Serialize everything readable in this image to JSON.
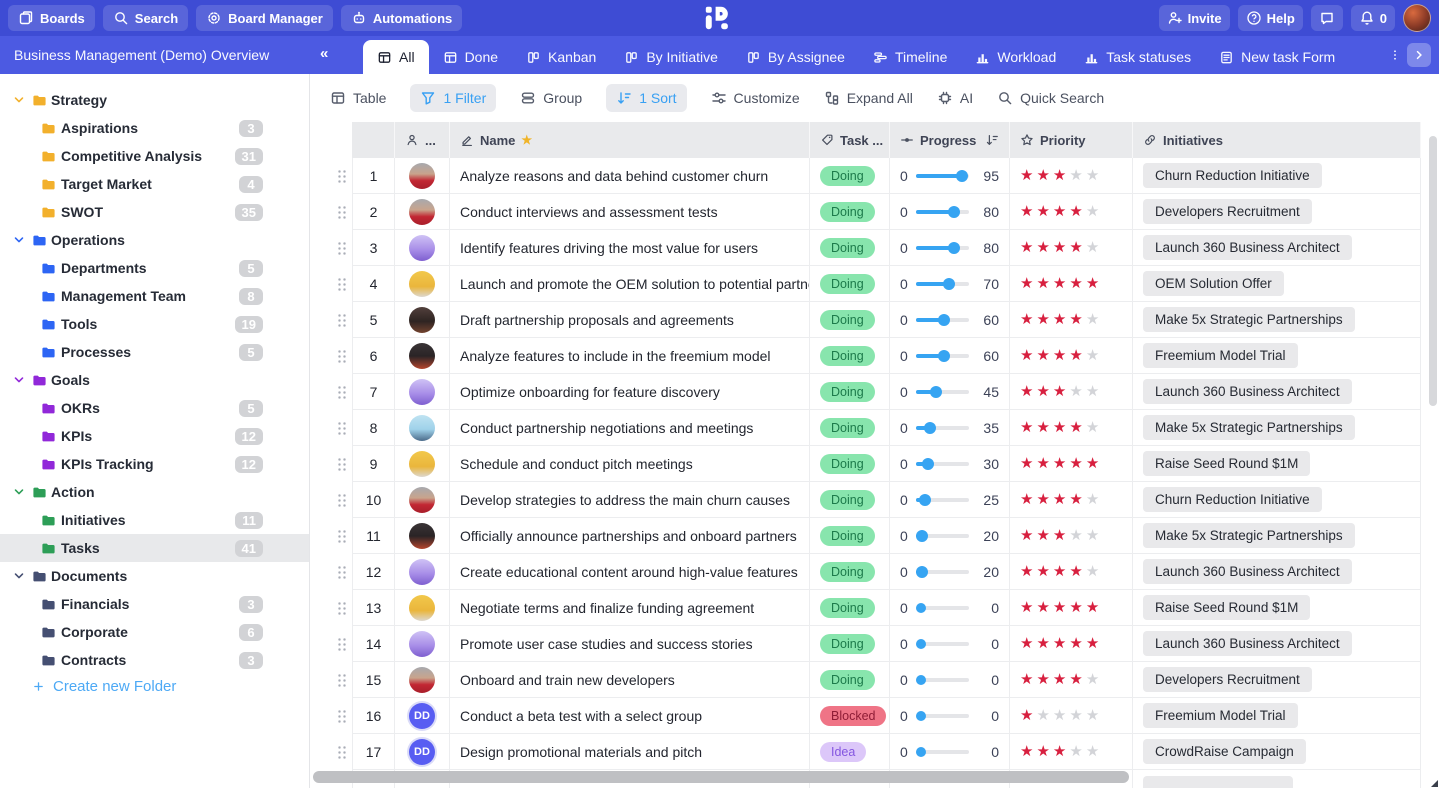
{
  "colors": {
    "topnav_bg": "#3e4cd4",
    "boardbar_bg": "#4c5ae2",
    "accent_blue": "#38a0f3",
    "star_filled": "#d8203f",
    "star_empty": "#d3d4d8",
    "required_star": "#f0b429"
  },
  "topnav": {
    "left_buttons": [
      {
        "label": "Boards",
        "icon": "boards"
      },
      {
        "label": "Search",
        "icon": "search"
      },
      {
        "label": "Board Manager",
        "icon": "gear"
      },
      {
        "label": "Automations",
        "icon": "bot"
      }
    ],
    "invite_label": "Invite",
    "help_label": "Help",
    "notification_count": "0"
  },
  "boardbar": {
    "title": "Business Management (Demo) Overview",
    "collapse_glyph": "«",
    "tabs": [
      {
        "label": "All",
        "icon": "table",
        "active": true
      },
      {
        "label": "Done",
        "icon": "table",
        "active": false
      },
      {
        "label": "Kanban",
        "icon": "kanban",
        "active": false
      },
      {
        "label": "By Initiative",
        "icon": "kanban",
        "active": false
      },
      {
        "label": "By Assignee",
        "icon": "kanban",
        "active": false
      },
      {
        "label": "Timeline",
        "icon": "timeline",
        "active": false
      },
      {
        "label": "Workload",
        "icon": "chart",
        "active": false
      },
      {
        "label": "Task statuses",
        "icon": "chart",
        "active": false
      },
      {
        "label": "New task Form",
        "icon": "form",
        "active": false
      }
    ]
  },
  "sidebar": {
    "sections": [
      {
        "label": "Strategy",
        "color": "#f2b02c",
        "children": [
          {
            "label": "Aspirations",
            "count": "3"
          },
          {
            "label": "Competitive Analysis",
            "count": "31"
          },
          {
            "label": "Target Market",
            "count": "4"
          },
          {
            "label": "SWOT",
            "count": "35"
          }
        ]
      },
      {
        "label": "Operations",
        "color": "#2d65f4",
        "children": [
          {
            "label": "Departments",
            "count": "5"
          },
          {
            "label": "Management Team",
            "count": "8"
          },
          {
            "label": "Tools",
            "count": "19"
          },
          {
            "label": "Processes",
            "count": "5"
          }
        ]
      },
      {
        "label": "Goals",
        "color": "#9128d9",
        "children": [
          {
            "label": "OKRs",
            "count": "5"
          },
          {
            "label": "KPIs",
            "count": "12"
          },
          {
            "label": "KPIs Tracking",
            "count": "12"
          }
        ]
      },
      {
        "label": "Action",
        "color": "#2d9e57",
        "children": [
          {
            "label": "Initiatives",
            "count": "11"
          },
          {
            "label": "Tasks",
            "count": "41",
            "selected": true
          }
        ]
      },
      {
        "label": "Documents",
        "color": "#454f72",
        "children": [
          {
            "label": "Financials",
            "count": "3"
          },
          {
            "label": "Corporate",
            "count": "6"
          },
          {
            "label": "Contracts",
            "count": "3"
          }
        ]
      }
    ],
    "create_folder_label": "Create new Folder"
  },
  "toolbar": {
    "items": [
      {
        "label": "Table",
        "icon": "table",
        "active": false
      },
      {
        "label": "1 Filter",
        "icon": "funnel",
        "active": true
      },
      {
        "label": "Group",
        "icon": "group",
        "active": false
      },
      {
        "label": "1 Sort",
        "icon": "sort",
        "active": true
      },
      {
        "label": "Customize",
        "icon": "sliders",
        "active": false
      },
      {
        "label": "Expand All",
        "icon": "expand",
        "active": false
      },
      {
        "label": "AI",
        "icon": "chip",
        "active": false
      },
      {
        "label": "Quick Search",
        "icon": "search",
        "active": false
      }
    ]
  },
  "statuses": {
    "Doing": {
      "bg": "#88e5ad",
      "text": "#1c7a4a"
    },
    "Blocked": {
      "bg": "#ef7486",
      "text": "#8f1d36"
    },
    "Idea": {
      "bg": "#dcc7f9",
      "text": "#8456e0"
    }
  },
  "table": {
    "columns": [
      {
        "key": "num",
        "label": ""
      },
      {
        "key": "avatar",
        "label": "...",
        "icon": "person"
      },
      {
        "key": "name",
        "label": "Name",
        "icon": "pencil",
        "required": true
      },
      {
        "key": "status",
        "label": "Task ...",
        "icon": "tag"
      },
      {
        "key": "progress",
        "label": "Progress",
        "icon": "slider",
        "sort": true
      },
      {
        "key": "priority",
        "label": "Priority",
        "icon": "star"
      },
      {
        "key": "initiatives",
        "label": "Initiatives",
        "icon": "link"
      }
    ],
    "rows": [
      {
        "num": "1",
        "avatar": {
          "type": "man-red"
        },
        "name": "Analyze reasons and data behind customer churn",
        "status": "Doing",
        "progress": 95,
        "priority": 3,
        "initiative": "Churn Reduction Initiative"
      },
      {
        "num": "2",
        "avatar": {
          "type": "man-red"
        },
        "name": "Conduct interviews and assessment tests",
        "status": "Doing",
        "progress": 80,
        "priority": 4,
        "initiative": "Developers Recruitment"
      },
      {
        "num": "3",
        "avatar": {
          "type": "purple"
        },
        "name": "Identify features driving the most value for users",
        "status": "Doing",
        "progress": 80,
        "priority": 4,
        "initiative": "Launch 360 Business Architect"
      },
      {
        "num": "4",
        "avatar": {
          "type": "yellow"
        },
        "name": "Launch and promote the OEM solution to potential partners",
        "status": "Doing",
        "progress": 70,
        "priority": 5,
        "initiative": "OEM Solution Offer"
      },
      {
        "num": "5",
        "avatar": {
          "type": "dark"
        },
        "name": "Draft partnership proposals and agreements",
        "status": "Doing",
        "progress": 60,
        "priority": 4,
        "initiative": "Make 5x Strategic Partnerships"
      },
      {
        "num": "6",
        "avatar": {
          "type": "redhair"
        },
        "name": "Analyze features to include in the freemium model",
        "status": "Doing",
        "progress": 60,
        "priority": 4,
        "initiative": "Freemium Model Trial"
      },
      {
        "num": "7",
        "avatar": {
          "type": "purple"
        },
        "name": "Optimize onboarding for feature discovery",
        "status": "Doing",
        "progress": 45,
        "priority": 3,
        "initiative": "Launch 360 Business Architect"
      },
      {
        "num": "8",
        "avatar": {
          "type": "cartoon"
        },
        "name": "Conduct partnership negotiations and meetings",
        "status": "Doing",
        "progress": 35,
        "priority": 4,
        "initiative": "Make 5x Strategic Partnerships"
      },
      {
        "num": "9",
        "avatar": {
          "type": "yellow"
        },
        "name": "Schedule and conduct pitch meetings",
        "status": "Doing",
        "progress": 30,
        "priority": 5,
        "initiative": "Raise Seed Round $1M"
      },
      {
        "num": "10",
        "avatar": {
          "type": "man-red"
        },
        "name": "Develop strategies to address the main churn causes",
        "status": "Doing",
        "progress": 25,
        "priority": 4,
        "initiative": "Churn Reduction Initiative"
      },
      {
        "num": "11",
        "avatar": {
          "type": "redhair"
        },
        "name": "Officially announce partnerships and onboard partners",
        "status": "Doing",
        "progress": 20,
        "priority": 3,
        "initiative": "Make 5x Strategic Partnerships"
      },
      {
        "num": "12",
        "avatar": {
          "type": "purple"
        },
        "name": "Create educational content around high-value features",
        "status": "Doing",
        "progress": 20,
        "priority": 4,
        "initiative": "Launch 360 Business Architect"
      },
      {
        "num": "13",
        "avatar": {
          "type": "yellow"
        },
        "name": "Negotiate terms and finalize funding agreement",
        "status": "Doing",
        "progress": 0,
        "priority": 5,
        "initiative": "Raise Seed Round $1M"
      },
      {
        "num": "14",
        "avatar": {
          "type": "purple"
        },
        "name": "Promote user case studies and success stories",
        "status": "Doing",
        "progress": 0,
        "priority": 5,
        "initiative": "Launch 360 Business Architect"
      },
      {
        "num": "15",
        "avatar": {
          "type": "man-red"
        },
        "name": "Onboard and train new developers",
        "status": "Doing",
        "progress": 0,
        "priority": 4,
        "initiative": "Developers Recruitment"
      },
      {
        "num": "16",
        "avatar": {
          "type": "initials",
          "initials": "DD"
        },
        "name": "Conduct a beta test with a select group",
        "status": "Blocked",
        "progress": 0,
        "priority": 1,
        "initiative": "Freemium Model Trial"
      },
      {
        "num": "17",
        "avatar": {
          "type": "initials",
          "initials": "DD"
        },
        "name": "Design promotional materials and pitch",
        "status": "Idea",
        "progress": 0,
        "priority": 3,
        "initiative": "CrowdRaise Campaign"
      }
    ]
  }
}
